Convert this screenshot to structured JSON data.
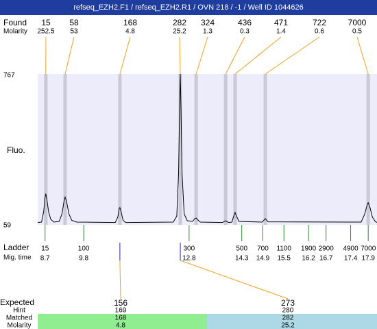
{
  "title": "refseq_EZH2.F1 / refseq_EZH2.R1 / OVN 218 / -1 / Well ID 1044626",
  "found": {
    "label": "Found",
    "molarity_label": "Molarity",
    "peaks": [
      {
        "size": 15,
        "molarity": 252.5,
        "time": 8.72
      },
      {
        "size": 58,
        "molarity": 53,
        "time": 9.27
      },
      {
        "size": 168,
        "molarity": 4.8,
        "time": 10.83
      },
      {
        "size": 282,
        "molarity": 25.2,
        "time": 12.55
      },
      {
        "size": 324,
        "molarity": 1.3,
        "time": 13.0
      },
      {
        "size": 436,
        "molarity": 0.3,
        "time": 13.84
      },
      {
        "size": 471,
        "molarity": 1.4,
        "time": 14.11
      },
      {
        "size": 722,
        "molarity": 0.6,
        "time": 14.97
      },
      {
        "size": 7000,
        "molarity": 0.5,
        "time": 17.9
      }
    ]
  },
  "axis": {
    "label": "Fluo.",
    "ylim": [
      59,
      767
    ],
    "xlim": [
      8.49,
      18.15
    ]
  },
  "trace": {
    "time": [
      8.49,
      8.6,
      8.66,
      8.7,
      8.72,
      8.75,
      8.8,
      8.86,
      8.95,
      9.1,
      9.18,
      9.24,
      9.27,
      9.31,
      9.38,
      9.46,
      9.6,
      10.7,
      10.77,
      10.81,
      10.83,
      10.86,
      10.92,
      11.0,
      12.35,
      12.45,
      12.5,
      12.53,
      12.55,
      12.57,
      12.6,
      12.66,
      12.75,
      12.9,
      12.96,
      13.0,
      13.05,
      13.12,
      13.75,
      13.84,
      13.92,
      14.02,
      14.07,
      14.11,
      14.15,
      14.22,
      14.88,
      14.97,
      15.05,
      17.7,
      17.8,
      17.88,
      17.9,
      17.95,
      18.02,
      18.1,
      18.15
    ],
    "fluo": [
      70,
      72,
      120,
      190,
      205,
      180,
      120,
      85,
      72,
      75,
      110,
      170,
      189,
      170,
      110,
      80,
      72,
      70,
      95,
      135,
      140,
      125,
      80,
      70,
      72,
      100,
      300,
      600,
      767,
      600,
      300,
      110,
      78,
      75,
      88,
      91,
      82,
      72,
      70,
      78,
      70,
      72,
      100,
      117,
      100,
      75,
      72,
      88,
      73,
      72,
      110,
      160,
      163,
      140,
      95,
      75,
      70
    ]
  },
  "ladder": {
    "label": "Ladder",
    "time_label": "Mig. time",
    "markers": [
      {
        "size": 15,
        "time": 8.7
      },
      {
        "size": 100,
        "time": 9.8
      },
      {
        "size": 300,
        "time": 12.8
      },
      {
        "size": 500,
        "time": 14.3
      },
      {
        "size": 700,
        "time": 14.9
      },
      {
        "size": 1100,
        "time": 15.5
      },
      {
        "size": 1900,
        "time": 16.2
      },
      {
        "size": 2900,
        "time": 16.7
      },
      {
        "size": 4900,
        "time": 17.4
      },
      {
        "size": 7000,
        "time": 17.9
      }
    ]
  },
  "expected": {
    "label": "Expected",
    "hint_label": "Hint",
    "matched_label": "Matched",
    "molarity_label": "Molarity",
    "items": [
      {
        "expected": 156,
        "hint": 169,
        "matched": 168,
        "molarity": 4.8
      },
      {
        "expected": 273,
        "hint": 280,
        "matched": 282,
        "molarity": 25.2
      }
    ]
  }
}
